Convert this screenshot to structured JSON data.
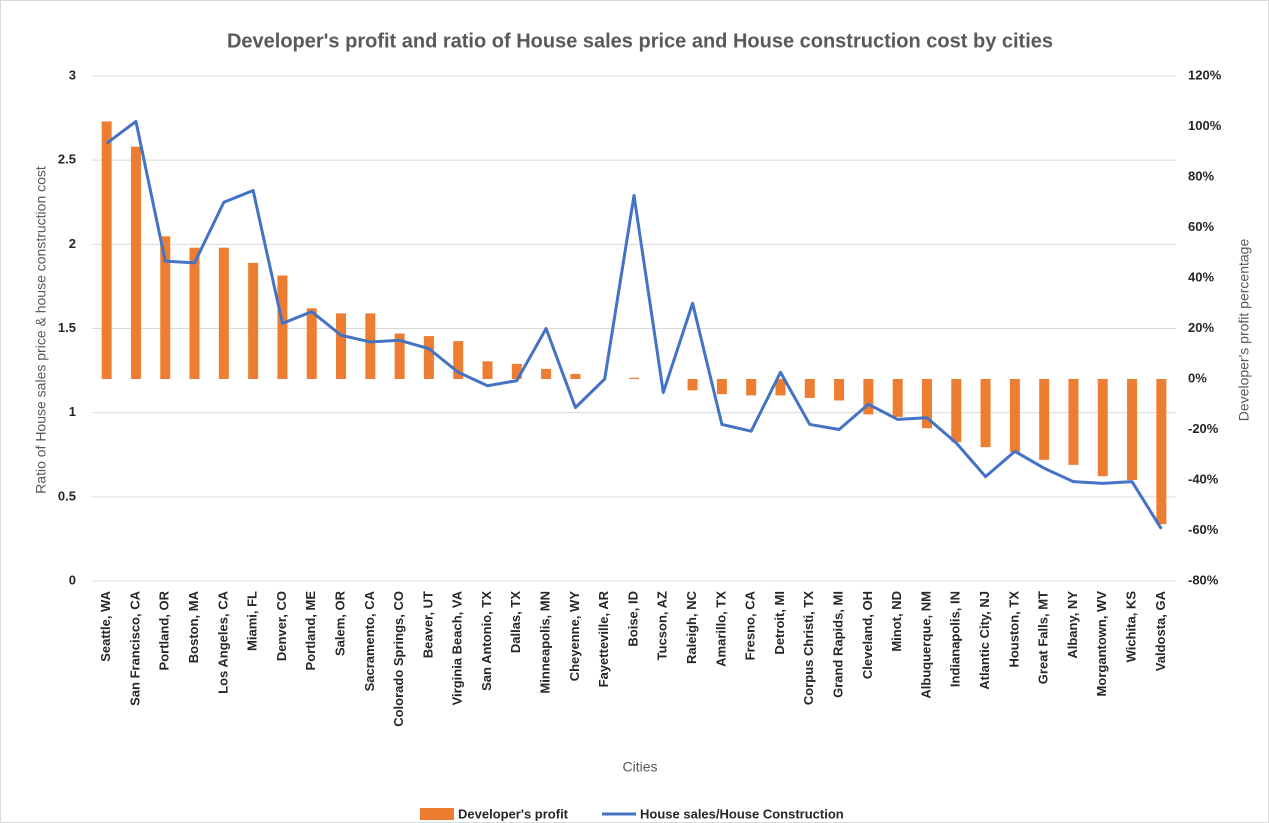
{
  "chart_data": {
    "type": "combo",
    "title": "Developer's profit and ratio of House sales price and House construction cost by cities",
    "x_label": "Cities",
    "y_label": "Ratio of House sales price & house construction cost",
    "y2_label": "Developer's profit percentage",
    "categories": [
      "Seattle, WA",
      "San Francisco, CA",
      "Portland, OR",
      "Boston, MA",
      "Los Angeles, CA",
      "Miami, FL",
      "Denver, CO",
      "Portland, ME",
      "Salem, OR",
      "Sacramento, CA",
      "Colorado Springs, CO",
      "Beaver, UT",
      "Virginia Beach, VA",
      "San Antonio, TX",
      "Dallas, TX",
      "Minneapolis, MN",
      "Cheyenne, WY",
      "Fayetteville, AR",
      "Boise, ID",
      "Tucson, AZ",
      "Raleigh, NC",
      "Amarillo, TX",
      "Fresno, CA",
      "Detroit, MI",
      "Corpus Christi, TX",
      "Grand Rapids, MI",
      "Cleveland, OH",
      "Minot, ND",
      "Albuquerque, NM",
      "Indianapolis, IN",
      "Atlantic City, NJ",
      "Houston, TX",
      "Great Falls, MT",
      "Albany, NY",
      "Morgantown, WV",
      "Wichita, KS",
      "Valdosta, GA"
    ],
    "series": [
      {
        "name": "Developer's profit",
        "type": "bar",
        "axis": "y2",
        "color": "#ed7d31",
        "values": [
          102,
          92,
          56.5,
          52,
          52,
          46,
          41,
          28,
          26,
          26,
          18,
          17,
          15,
          7,
          6,
          4,
          2,
          0,
          0.5,
          0,
          -4.5,
          -6,
          -6.5,
          -6.5,
          -7.5,
          -8.5,
          -14,
          -15,
          -19.5,
          -25,
          -27,
          -29,
          -32,
          -34,
          -38.5,
          -40,
          -57.5
        ]
      },
      {
        "name": "House sales/House Construction",
        "type": "line",
        "color": "#4472c4",
        "values": [
          2.6,
          2.73,
          1.9,
          1.89,
          2.25,
          2.32,
          1.53,
          1.6,
          1.46,
          1.42,
          1.43,
          1.38,
          1.24,
          1.16,
          1.19,
          1.5,
          1.03,
          1.2,
          2.29,
          1.12,
          1.65,
          0.93,
          0.89,
          1.24,
          0.93,
          0.9,
          1.05,
          0.96,
          0.97,
          0.82,
          0.62,
          0.77,
          0.67,
          0.59,
          0.58,
          0.59,
          0.31
        ]
      }
    ],
    "ylim": [
      0,
      3
    ],
    "yticks": [
      0,
      0.5,
      1,
      1.5,
      2,
      2.5,
      3
    ],
    "y2lim": [
      -80,
      120
    ],
    "y2ticks": [
      {
        "value": -80,
        "label": "-80%"
      },
      {
        "value": -60,
        "label": "-60%"
      },
      {
        "value": -40,
        "label": "-40%"
      },
      {
        "value": -20,
        "label": "-20%"
      },
      {
        "value": 0,
        "label": "0%"
      },
      {
        "value": 20,
        "label": "20%"
      },
      {
        "value": 40,
        "label": "40%"
      },
      {
        "value": 60,
        "label": "60%"
      },
      {
        "value": 80,
        "label": "80%"
      },
      {
        "value": 100,
        "label": "100%"
      },
      {
        "value": 120,
        "label": "120%"
      }
    ],
    "grid": true,
    "legend": "bottom"
  }
}
